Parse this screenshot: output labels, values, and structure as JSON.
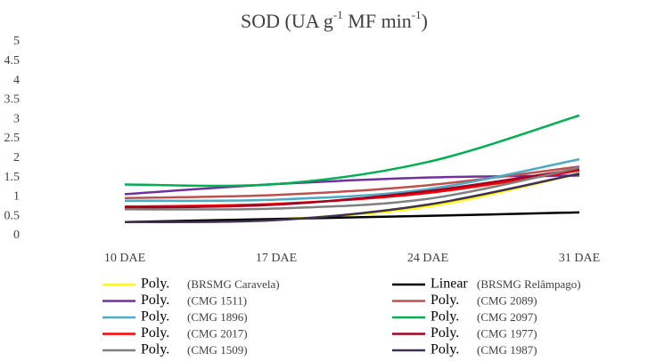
{
  "chart_data": {
    "type": "line",
    "title_parts": [
      "SOD (UA g",
      "-1",
      " MF min",
      "-1",
      ")"
    ],
    "categories": [
      "10 DAE",
      "17 DAE",
      "24 DAE",
      "31 DAE"
    ],
    "ylim": [
      0,
      5
    ],
    "yticks": [
      0,
      0.5,
      1,
      1.5,
      2,
      2.5,
      3,
      3.5,
      4,
      4.5,
      5
    ],
    "grid": false,
    "series": [
      {
        "fit": "Poly.",
        "name": "(BRSMG Caravela)",
        "color": "#ffff00",
        "values": [
          0.35,
          0.42,
          0.75,
          1.6
        ]
      },
      {
        "fit": "Linear",
        "name": "(BRSMG Relâmpago)",
        "color": "#000000",
        "values": [
          0.35,
          0.43,
          0.51,
          0.6
        ]
      },
      {
        "fit": "Poly.",
        "name": "(CMG 1511)",
        "color": "#7030a0",
        "values": [
          1.07,
          1.33,
          1.5,
          1.55
        ]
      },
      {
        "fit": "Poly.",
        "name": "(CMG 2089)",
        "color": "#c0504d",
        "values": [
          0.97,
          1.05,
          1.3,
          1.78
        ]
      },
      {
        "fit": "Poly.",
        "name": "(CMG 1896)",
        "color": "#4bacc6",
        "values": [
          0.9,
          0.93,
          1.2,
          1.97
        ]
      },
      {
        "fit": "Poly.",
        "name": "(CMG 2097)",
        "color": "#00b050",
        "values": [
          1.32,
          1.33,
          1.9,
          3.1
        ]
      },
      {
        "fit": "Poly.",
        "name": "(CMG 2017)",
        "color": "#ff0000",
        "values": [
          0.75,
          0.82,
          1.1,
          1.68
        ]
      },
      {
        "fit": "Poly.",
        "name": "(CMG 1977)",
        "color": "#a50021",
        "values": [
          0.72,
          0.8,
          1.15,
          1.72
        ]
      },
      {
        "fit": "Poly.",
        "name": "(CMG 1509)",
        "color": "#7f7f7f",
        "values": [
          0.68,
          0.7,
          0.95,
          1.75
        ]
      },
      {
        "fit": "Poly.",
        "name": "(CMG 1987)",
        "color": "#3f3151",
        "values": [
          0.35,
          0.4,
          0.8,
          1.6
        ]
      }
    ]
  }
}
